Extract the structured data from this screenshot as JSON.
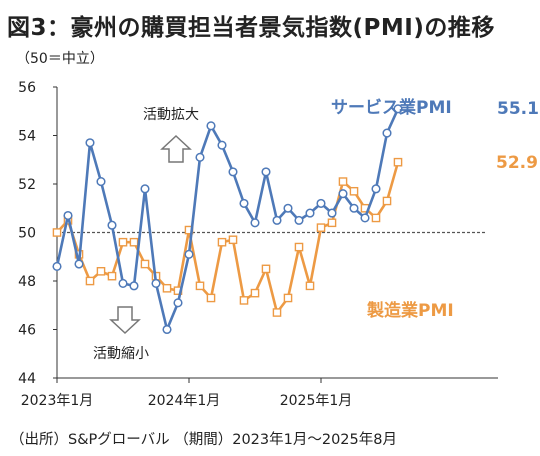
{
  "title": "図3：豪州の購買担当者景気指数(PMI)の推移",
  "subtitle": "（50＝中立）",
  "source": "（出所）S&Pグローバル （期間）2023年1月～2025年8月",
  "colors": {
    "services": "#4e79b8",
    "manufacturing": "#ed9a44",
    "neutral_line": "#555555",
    "arrow": "#777777"
  },
  "chart_data": {
    "type": "line",
    "ylim": [
      44,
      56
    ],
    "yticks": [
      44,
      46,
      48,
      50,
      52,
      54,
      56
    ],
    "x": [
      "2023-01",
      "2023-02",
      "2023-03",
      "2023-04",
      "2023-05",
      "2023-06",
      "2023-07",
      "2023-08",
      "2023-09",
      "2023-10",
      "2023-11",
      "2023-12",
      "2024-01",
      "2024-02",
      "2024-03",
      "2024-04",
      "2024-05",
      "2024-06",
      "2024-07",
      "2024-08",
      "2024-09",
      "2024-10",
      "2024-11",
      "2024-12",
      "2025-01",
      "2025-02",
      "2025-03",
      "2025-04",
      "2025-05",
      "2025-06",
      "2025-07",
      "2025-08"
    ],
    "xtick_labels": [
      {
        "at": "2023-01",
        "label": "2023年1月"
      },
      {
        "at": "2024-01",
        "label": "2024年1月"
      },
      {
        "at": "2025-01",
        "label": "2025年1月"
      }
    ],
    "reference_line": 50,
    "series": [
      {
        "name": "サービス業PMI",
        "marker": "circle",
        "values": [
          48.6,
          50.7,
          48.7,
          53.7,
          52.1,
          50.3,
          47.9,
          47.8,
          51.8,
          47.9,
          46.0,
          47.1,
          49.1,
          53.1,
          54.4,
          53.6,
          52.5,
          51.2,
          50.4,
          52.5,
          50.5,
          51.0,
          50.5,
          50.8,
          51.2,
          50.8,
          51.6,
          51.0,
          50.6,
          51.8,
          54.1,
          55.1
        ],
        "end_label": "55.1"
      },
      {
        "name": "製造業PMI",
        "marker": "square",
        "values": [
          50.0,
          50.5,
          49.1,
          48.0,
          48.4,
          48.2,
          49.6,
          49.6,
          48.7,
          48.2,
          47.7,
          47.6,
          50.1,
          47.8,
          47.3,
          49.6,
          49.7,
          47.2,
          47.5,
          48.5,
          46.7,
          47.3,
          49.4,
          47.8,
          50.2,
          50.4,
          52.1,
          51.7,
          51.0,
          50.6,
          51.3,
          52.9
        ],
        "end_label": "52.9"
      }
    ],
    "annotations": {
      "up": "活動拡大",
      "down": "活動縮小"
    }
  }
}
